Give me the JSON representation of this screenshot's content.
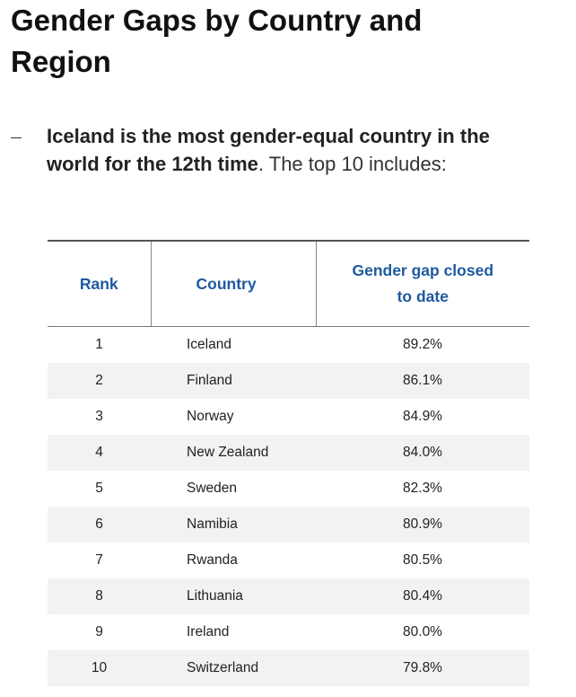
{
  "header": {
    "title": "Gender Gaps by Country and Region"
  },
  "bullet": {
    "bold": "Iceland is the most gender-equal country in the world for the 12th time",
    "text": ". The top 10 includes:"
  },
  "table": {
    "columns": [
      "Rank",
      "Country",
      "Gender gap closed to date"
    ],
    "rows": [
      [
        "1",
        "Iceland",
        "89.2%"
      ],
      [
        "2",
        "Finland",
        "86.1%"
      ],
      [
        "3",
        "Norway",
        "84.9%"
      ],
      [
        "4",
        "New Zealand",
        "84.0%"
      ],
      [
        "5",
        "Sweden",
        "82.3%"
      ],
      [
        "6",
        "Namibia",
        "80.9%"
      ],
      [
        "7",
        "Rwanda",
        "80.5%"
      ],
      [
        "8",
        "Lithuania",
        "80.4%"
      ],
      [
        "9",
        "Ireland",
        "80.0%"
      ],
      [
        "10",
        "Switzerland",
        "79.8%"
      ]
    ]
  }
}
